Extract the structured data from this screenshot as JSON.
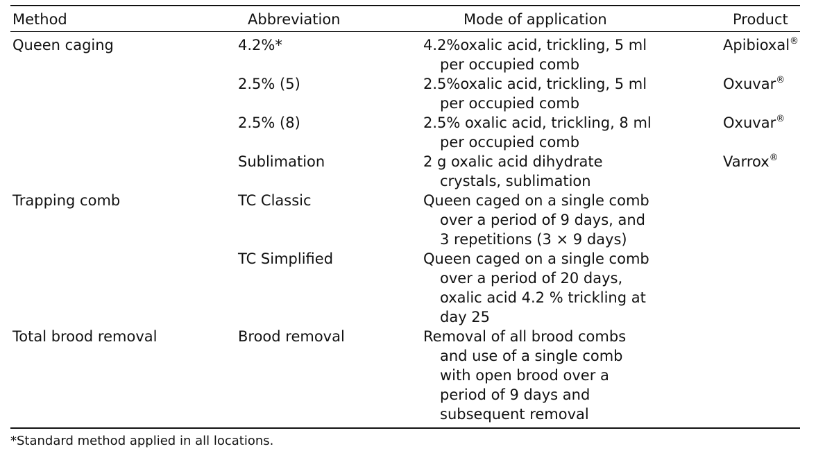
{
  "table": {
    "headers": {
      "method": "Method",
      "abbreviation": "Abbreviation",
      "mode": "Mode of application",
      "product": "Product"
    },
    "rows": [
      {
        "method": "Queen caging",
        "abbreviation": "4.2%*",
        "mode_lines": [
          "4.2%oxalic acid, trickling, 5 ml",
          "per occupied comb"
        ],
        "product": "Apibioxal",
        "product_mark": "®"
      },
      {
        "method": "",
        "abbreviation": "2.5% (5)",
        "mode_lines": [
          "2.5%oxalic acid, trickling, 5 ml",
          "per occupied comb"
        ],
        "product": "Oxuvar",
        "product_mark": "®"
      },
      {
        "method": "",
        "abbreviation": "2.5% (8)",
        "mode_lines": [
          "2.5% oxalic acid, trickling, 8 ml",
          "per occupied comb"
        ],
        "product": "Oxuvar",
        "product_mark": "®"
      },
      {
        "method": "",
        "abbreviation": "Sublimation",
        "mode_lines": [
          "2 g oxalic acid dihydrate",
          "crystals, sublimation"
        ],
        "product": "Varrox",
        "product_mark": "®"
      },
      {
        "method": "Trapping comb",
        "abbreviation": "TC Classic",
        "mode_lines": [
          "Queen caged on a single comb",
          "over a period of 9 days, and",
          "3 repetitions (3 × 9 days)"
        ],
        "product": "",
        "product_mark": ""
      },
      {
        "method": "",
        "abbreviation": "TC Simplified",
        "mode_lines": [
          "Queen caged on a single comb",
          "over a period of 20 days,",
          "oxalic acid 4.2 % trickling at",
          "day 25"
        ],
        "product": "",
        "product_mark": ""
      },
      {
        "method": "Total brood removal",
        "abbreviation": "Brood removal",
        "mode_lines": [
          "Removal of all brood combs",
          "and use of a single comb",
          "with open brood over a",
          "period of 9 days and",
          "subsequent removal"
        ],
        "product": "",
        "product_mark": ""
      }
    ]
  },
  "footnote": "*Standard method applied in all locations."
}
